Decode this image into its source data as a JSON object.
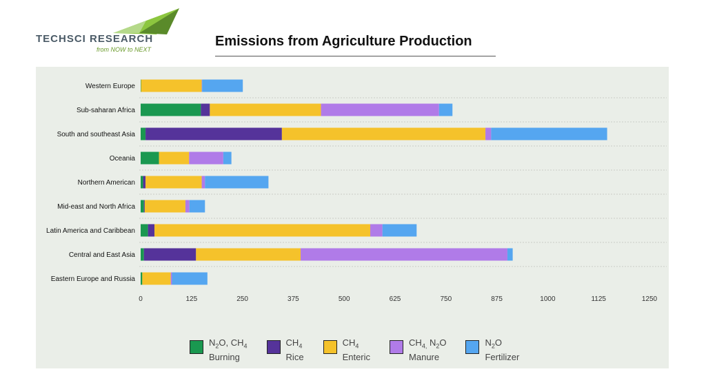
{
  "header": {
    "logo_name": "TECHSCI RESEARCH",
    "logo_tagline": "from NOW to NEXT",
    "title": "Emissions from Agriculture Production"
  },
  "colors": {
    "burning": "#1a9850",
    "rice": "#55339a",
    "enteric": "#f5c22b",
    "manure": "#b07be8",
    "fertilizer": "#55a6f0",
    "panel": "#eaeee8"
  },
  "chart_data": {
    "type": "bar",
    "orientation": "horizontal",
    "stacked": true,
    "title": "Emissions from Agriculture Production",
    "categories": [
      "Western Europe",
      "Sub-saharan Africa",
      "South and southeast Asia",
      "Oceania",
      "Northern American",
      "Mid-east and North Africa",
      "Latin America and Caribbean",
      "Central and East Asia",
      "Eastern Europe and Russia"
    ],
    "series": [
      {
        "key": "burning",
        "name": "N2O, CH4 Burning",
        "values": [
          1,
          148,
          12,
          45,
          6,
          8,
          18,
          8,
          4
        ]
      },
      {
        "key": "rice",
        "name": "CH4 Rice",
        "values": [
          0,
          22,
          335,
          0,
          6,
          2,
          16,
          128,
          0
        ]
      },
      {
        "key": "enteric",
        "name": "CH4 Enteric",
        "values": [
          149,
          273,
          500,
          74,
          138,
          100,
          530,
          257,
          70
        ]
      },
      {
        "key": "manure",
        "name": "CH4, N2O Manure",
        "values": [
          1,
          290,
          14,
          84,
          8,
          10,
          30,
          508,
          3
        ]
      },
      {
        "key": "fertilizer",
        "name": "N2O Fertilizer",
        "values": [
          100,
          33,
          285,
          20,
          156,
          38,
          84,
          13,
          87
        ]
      }
    ],
    "x_ticks": [
      0,
      125,
      250,
      375,
      500,
      625,
      750,
      875,
      1000,
      1125,
      1250
    ],
    "xlim": [
      0,
      1250
    ],
    "grid": "horizontal dashed separators",
    "legend_position": "bottom"
  },
  "legend": [
    {
      "key": "burning",
      "line1_html": "N<sub>2</sub>O, CH<sub>4</sub>",
      "line2": "Burning"
    },
    {
      "key": "rice",
      "line1_html": "CH<sub>4</sub>",
      "line2": "Rice"
    },
    {
      "key": "enteric",
      "line1_html": "CH<sub>4</sub>",
      "line2": "Enteric"
    },
    {
      "key": "manure",
      "line1_html": "CH<sub>4,</sub> N<sub>2</sub>O",
      "line2": "Manure"
    },
    {
      "key": "fertilizer",
      "line1_html": "N<sub>2</sub>O",
      "line2": "Fertilizer"
    }
  ]
}
